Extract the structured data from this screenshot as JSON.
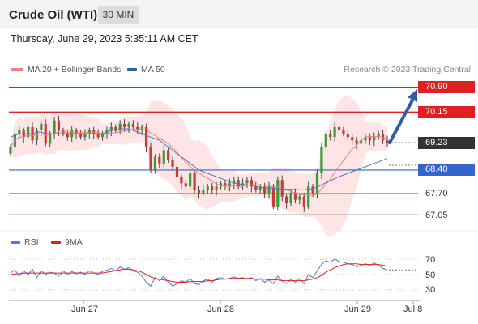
{
  "header": {
    "title": "Crude Oil (WTI)",
    "timeframe": "30 MIN"
  },
  "datetime": "Thursday, June 29, 2023 5:35:11 AM CET",
  "legend": {
    "ma20": "MA 20 + Bollinger Bands",
    "ma50": "MA 50",
    "research": "Research © 2023 Trading Central"
  },
  "rsi_legend": {
    "rsi": "RSI",
    "ma9": "9MA"
  },
  "colors": {
    "resistance": "#e02020",
    "current": "#333333",
    "support_ma": "#3366cc",
    "support": "#8fbf7f",
    "ma20": "#f08080",
    "ma50": "#5577bb",
    "arrow": "#2f5f9f",
    "rsi": "#5577dd",
    "rsi_ma": "#e02020",
    "band": "#fde0e0"
  },
  "chart_data": [
    {
      "type": "candlestick",
      "title": "",
      "x_ticks": [
        "Jun 27",
        "Jun 28",
        "Jun 29",
        "Jul 8"
      ],
      "ylim": [
        66.9,
        71.0
      ],
      "levels": [
        {
          "label": "70.90",
          "value": 70.9,
          "role": "resistance"
        },
        {
          "label": "70.15",
          "value": 70.15,
          "role": "resistance"
        },
        {
          "label": "69.23",
          "value": 69.23,
          "role": "current"
        },
        {
          "label": "68.40",
          "value": 68.4,
          "role": "support-ma"
        },
        {
          "label": "67.70",
          "value": 67.7,
          "role": "support"
        },
        {
          "label": "67.05",
          "value": 67.05,
          "role": "support"
        }
      ],
      "close": [
        69.1,
        69.5,
        69.6,
        69.4,
        69.7,
        69.3,
        69.6,
        69.8,
        69.2,
        69.5,
        69.9,
        69.6,
        69.5,
        69.4,
        69.6,
        69.5,
        69.4,
        69.5,
        69.6,
        69.5,
        69.4,
        69.5,
        69.6,
        69.7,
        69.6,
        69.8,
        69.7,
        69.8,
        69.7,
        69.6,
        69.7,
        69.1,
        68.4,
        68.8,
        68.6,
        69.0,
        68.7,
        68.5,
        68.2,
        68.0,
        67.9,
        68.3,
        67.8,
        67.7,
        67.8,
        67.9,
        67.8,
        67.9,
        68.0,
        67.9,
        68.0,
        68.1,
        67.9,
        68.0,
        68.1,
        67.9,
        67.8,
        67.9,
        67.7,
        67.9,
        67.3,
        68.1,
        67.6,
        67.4,
        67.7,
        67.5,
        67.6,
        67.3,
        67.9,
        67.7,
        68.3,
        69.1,
        69.5,
        69.4,
        69.7,
        69.6,
        69.5,
        69.4,
        69.3,
        69.2,
        69.3,
        69.4,
        69.3,
        69.4,
        69.5,
        69.3,
        69.23
      ],
      "ma50": [
        69.4,
        69.45,
        69.5,
        69.5,
        69.5,
        69.5,
        69.55,
        69.55,
        69.5,
        69.5,
        69.5,
        69.5,
        69.5,
        69.5,
        69.5,
        69.5,
        69.5,
        69.5,
        69.5,
        69.5,
        69.5,
        69.5,
        69.55,
        69.6,
        69.6,
        69.65,
        69.65,
        69.65,
        69.6,
        69.55,
        69.5,
        69.45,
        69.4,
        69.35,
        69.3,
        69.2,
        69.1,
        69.0,
        68.9,
        68.8,
        68.7,
        68.6,
        68.5,
        68.4,
        68.35,
        68.3,
        68.25,
        68.2,
        68.15,
        68.1,
        68.05,
        68.0,
        67.98,
        67.96,
        67.95,
        67.93,
        67.9,
        67.88,
        67.87,
        67.86,
        67.85,
        67.84,
        67.83,
        67.82,
        67.82,
        67.81,
        67.8,
        67.8,
        67.82,
        67.84,
        67.88,
        67.95,
        68.02,
        68.08,
        68.14,
        68.2,
        68.25,
        68.3,
        68.35,
        68.4,
        68.45,
        68.5,
        68.55,
        68.6,
        68.65,
        68.7,
        68.75
      ]
    },
    {
      "type": "line",
      "title": "",
      "yticks": [
        30,
        50,
        70
      ],
      "ylim": [
        20,
        80
      ],
      "series": [
        {
          "name": "RSI",
          "values": [
            52,
            56,
            48,
            55,
            50,
            57,
            46,
            55,
            50,
            53,
            52,
            48,
            55,
            50,
            54,
            51,
            53,
            50,
            55,
            52,
            50,
            54,
            56,
            58,
            55,
            60,
            57,
            59,
            55,
            53,
            48,
            40,
            35,
            46,
            42,
            48,
            40,
            35,
            38,
            42,
            40,
            45,
            38,
            37,
            42,
            44,
            40,
            45,
            46,
            44,
            45,
            47,
            45,
            46,
            44,
            46,
            42,
            45,
            40,
            43,
            38,
            48,
            42,
            38,
            44,
            40,
            45,
            38,
            50,
            46,
            55,
            63,
            68,
            66,
            70,
            67,
            66,
            64,
            63,
            60,
            62,
            64,
            62,
            65,
            62,
            58,
            56
          ]
        },
        {
          "name": "9MA",
          "values": [
            50,
            51,
            51,
            52,
            52,
            52,
            52,
            52,
            52,
            52,
            52,
            52,
            52,
            52,
            52,
            52,
            52,
            52,
            52,
            52,
            52,
            52,
            53,
            54,
            55,
            56,
            57,
            57,
            56,
            55,
            53,
            50,
            47,
            45,
            44,
            43,
            42,
            41,
            40,
            40,
            40,
            41,
            41,
            41,
            41,
            42,
            42,
            43,
            44,
            44,
            45,
            45,
            45,
            45,
            45,
            45,
            44,
            44,
            44,
            43,
            43,
            43,
            42,
            42,
            42,
            42,
            42,
            42,
            43,
            44,
            46,
            49,
            53,
            56,
            59,
            61,
            63,
            64,
            64,
            64,
            63,
            63,
            63,
            63,
            63,
            62,
            61
          ]
        }
      ]
    }
  ]
}
